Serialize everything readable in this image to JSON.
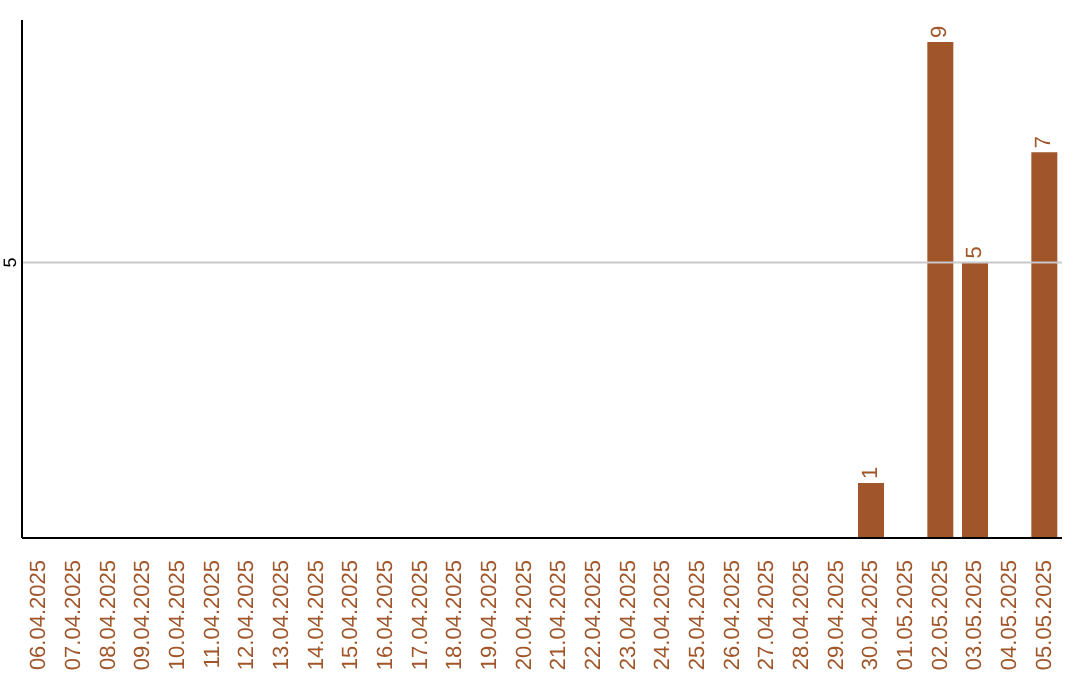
{
  "chart_data": {
    "type": "bar",
    "categories": [
      "06.04.2025",
      "07.04.2025",
      "08.04.2025",
      "09.04.2025",
      "10.04.2025",
      "11.04.2025",
      "12.04.2025",
      "13.04.2025",
      "14.04.2025",
      "15.04.2025",
      "16.04.2025",
      "17.04.2025",
      "18.04.2025",
      "19.04.2025",
      "20.04.2025",
      "21.04.2025",
      "22.04.2025",
      "23.04.2025",
      "24.04.2025",
      "25.04.2025",
      "26.04.2025",
      "27.04.2025",
      "28.04.2025",
      "29.04.2025",
      "30.04.2025",
      "01.05.2025",
      "02.05.2025",
      "03.05.2025",
      "04.05.2025",
      "05.05.2025"
    ],
    "values": [
      null,
      null,
      null,
      null,
      null,
      null,
      null,
      null,
      null,
      null,
      null,
      null,
      null,
      null,
      null,
      null,
      null,
      null,
      null,
      null,
      null,
      null,
      null,
      null,
      1,
      null,
      9,
      5,
      null,
      7
    ],
    "data_labels": true,
    "color": "#a0562a",
    "ylim": [
      0,
      9.4
    ],
    "ref_lines": [
      {
        "axis": "y",
        "value": 5,
        "label": "5",
        "color": "#c8c8c8"
      }
    ]
  }
}
